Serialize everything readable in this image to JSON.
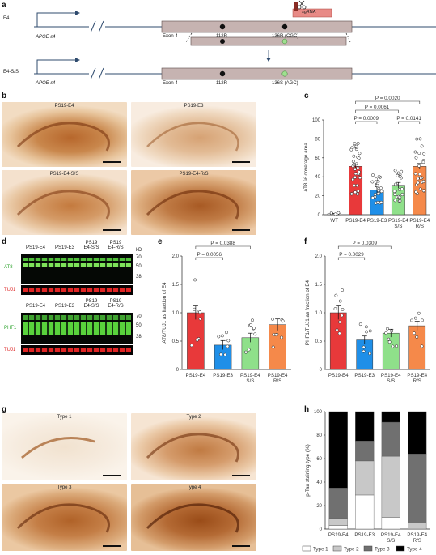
{
  "panels": {
    "a": "a",
    "b": "b",
    "c": "c",
    "d": "d",
    "e": "e",
    "f": "f",
    "g": "g",
    "h": "h"
  },
  "panel_a": {
    "row1_label": "E4",
    "row1_allele": "APOE ε4",
    "row2_label": "E4-S/S",
    "row2_allele": "APOE ε4",
    "exon": "Exon 4",
    "site1": "112R",
    "site2_top": "136R (CGC)",
    "site2_bottom": "136S (AGC)",
    "sgrna": "sgRNA",
    "colors": {
      "box": "#c6b3b1",
      "mut_dot": "#9fe08f",
      "sgrna": "#e88a86"
    }
  },
  "panel_b": {
    "images": [
      {
        "caption": "PS19-E4"
      },
      {
        "caption": "PS19-E3"
      },
      {
        "caption": "PS19-E4-S/S"
      },
      {
        "caption": "PS19-E4-R/S"
      }
    ]
  },
  "panel_g": {
    "images": [
      {
        "caption": "Type 1"
      },
      {
        "caption": "Type 2"
      },
      {
        "caption": "Type 3"
      },
      {
        "caption": "Type 4"
      }
    ]
  },
  "panel_d": {
    "groups": [
      "PS19-E4",
      "PS19-E3",
      "PS19 E4-S/S",
      "PS19 E4-R/S"
    ],
    "kd_label": "kD",
    "blot1": {
      "marker": "AT8",
      "loading": "TUJ1",
      "kd": [
        "70",
        "50",
        "38"
      ]
    },
    "blot2": {
      "marker": "PHF1",
      "loading": "TUJ1",
      "kd": [
        "70",
        "50",
        "38"
      ]
    }
  },
  "chart_data": [
    {
      "panel": "c",
      "type": "bar",
      "categories": [
        "WT",
        "PS19-E4",
        "PS19-E3",
        "PS19-E4 S/S",
        "PS19-E4 R/S"
      ],
      "values": [
        1,
        51,
        26,
        31,
        51
      ],
      "errors": [
        0.3,
        3,
        3.5,
        3,
        3
      ],
      "colors": [
        "#ffffff",
        "#e8393a",
        "#1f8fe8",
        "#8fe08a",
        "#f5894a"
      ],
      "ylabel": "AT8 % coverage area",
      "ylim": [
        0,
        100
      ],
      "yticks": [
        0,
        20,
        40,
        60,
        80,
        100
      ],
      "brackets": [
        {
          "from": 1,
          "to": 4,
          "label": "P = 0.0020"
        },
        {
          "from": 1,
          "to": 3,
          "label": "P = 0.0061"
        },
        {
          "from": 1,
          "to": 2,
          "label": "P = 0.0009"
        },
        {
          "from": 3,
          "to": 4,
          "label": "P = 0.0141"
        }
      ]
    },
    {
      "panel": "e",
      "type": "bar",
      "categories": [
        "PS19-E4",
        "PS19-E3",
        "PS19-E4 S/S",
        "PS19-E4 R/S"
      ],
      "values": [
        1.0,
        0.43,
        0.56,
        0.79
      ],
      "errors": [
        0.12,
        0.08,
        0.08,
        0.1
      ],
      "colors": [
        "#e8393a",
        "#1f8fe8",
        "#8fe08a",
        "#f5894a"
      ],
      "ylabel": "AT8/TUJ1 as fraction of E4",
      "ylim": [
        0,
        2.0
      ],
      "yticks": [
        "0",
        "0.5",
        "1.0",
        "1.5",
        "2.0"
      ],
      "brackets": [
        {
          "from": 0,
          "to": 2,
          "label": "P = 0.0388"
        },
        {
          "from": 0,
          "to": 1,
          "label": "P = 0.0056"
        }
      ]
    },
    {
      "panel": "f",
      "type": "bar",
      "categories": [
        "PS19-E4",
        "PS19-E3",
        "PS19-E4 S/S",
        "PS19-E4 R/S"
      ],
      "values": [
        1.0,
        0.52,
        0.64,
        0.77
      ],
      "errors": [
        0.12,
        0.07,
        0.07,
        0.08
      ],
      "colors": [
        "#e8393a",
        "#1f8fe8",
        "#8fe08a",
        "#f5894a"
      ],
      "ylabel": "PHF1/TUJ1 as fraction of E4",
      "ylim": [
        0,
        2.0
      ],
      "yticks": [
        "0",
        "0.5",
        "1.0",
        "1.5",
        "2.0"
      ],
      "brackets": [
        {
          "from": 0,
          "to": 2,
          "label": "P = 0.0309"
        },
        {
          "from": 0,
          "to": 1,
          "label": "P = 0.0029"
        }
      ]
    },
    {
      "panel": "h",
      "type": "bar",
      "stacked": true,
      "categories": [
        "PS19-E4",
        "PS19-E3",
        "PS19-E4 S/S",
        "PS19-E4 R/S"
      ],
      "series": [
        {
          "name": "Type 1",
          "color": "#ffffff",
          "values": [
            3,
            29,
            10,
            0
          ]
        },
        {
          "name": "Type 2",
          "color": "#c8c8c8",
          "values": [
            6,
            29,
            52,
            5
          ]
        },
        {
          "name": "Type 3",
          "color": "#707070",
          "values": [
            26,
            17,
            29,
            59
          ]
        },
        {
          "name": "Type 4",
          "color": "#000000",
          "values": [
            65,
            25,
            9,
            36
          ]
        }
      ],
      "ylabel": "p-Tau staining type (%)",
      "ylim": [
        0,
        100
      ],
      "yticks": [
        0,
        20,
        40,
        60,
        80,
        100
      ]
    }
  ]
}
